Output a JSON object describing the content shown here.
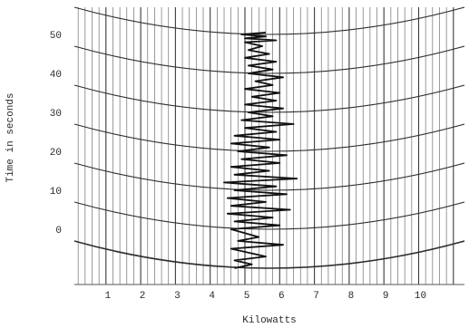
{
  "chart_data": {
    "type": "line",
    "title": "",
    "xlabel": "Kilowatts",
    "ylabel": "Time in seconds",
    "xlim": [
      0,
      11
    ],
    "ylim": [
      -12,
      55
    ],
    "xticks": [
      "1",
      "2",
      "3",
      "4",
      "5",
      "6",
      "7",
      "8",
      "9",
      "10"
    ],
    "yticks": [
      "50",
      "40",
      "30",
      "20",
      "10",
      "0"
    ],
    "grid": true,
    "series": [
      {
        "name": "",
        "x": [
          4.7,
          5.2,
          4.7,
          5.6,
          4.6,
          6.1,
          4.8,
          5.4,
          4.6,
          6.0,
          4.7,
          5.8,
          4.5,
          6.3,
          4.6,
          5.6,
          4.5,
          6.2,
          4.7,
          5.9,
          4.4,
          6.5,
          4.7,
          5.7,
          4.6,
          6.0,
          4.9,
          6.2,
          4.8,
          5.7,
          4.6,
          6.0,
          4.7,
          5.9,
          5.0,
          6.4,
          4.9,
          5.8,
          5.1,
          6.1,
          5.0,
          5.9,
          5.2,
          6.0,
          5.0,
          5.8,
          5.3,
          6.1,
          5.1,
          5.8,
          5.1,
          5.9,
          5.0,
          5.7,
          5.1,
          5.5,
          5.0,
          5.9,
          5.0,
          5.6,
          4.9,
          5.6
        ],
        "y": [
          -10,
          -9,
          -8,
          -7,
          -5,
          -4,
          -3,
          -2,
          0,
          1,
          2,
          3,
          4,
          5,
          6,
          7,
          8,
          9,
          10,
          11,
          12,
          13,
          14,
          15,
          16,
          17,
          18,
          19,
          20,
          21,
          22,
          23,
          24,
          25,
          26,
          27,
          28,
          29,
          30,
          31,
          32,
          33,
          34,
          35,
          36,
          37,
          38,
          39,
          40,
          41,
          42,
          43,
          44,
          45,
          46,
          47,
          48,
          48.5,
          49,
          49.5,
          50,
          50.5
        ]
      }
    ]
  }
}
